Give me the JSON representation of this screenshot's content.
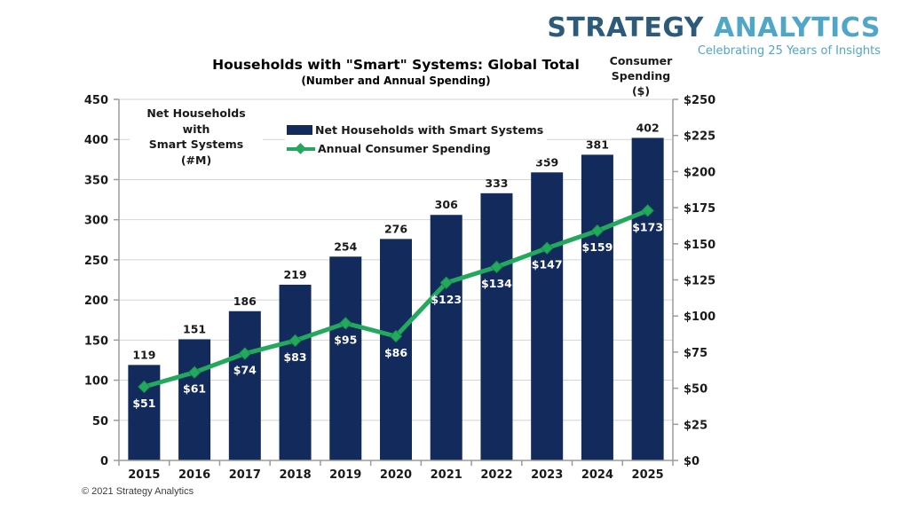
{
  "brand": {
    "name_primary": "STRATEGY",
    "name_secondary": "ANALYTICS",
    "tagline": "Celebrating 25 Years of Insights"
  },
  "footer": {
    "copyright": "© 2021 Strategy Analytics"
  },
  "colors": {
    "bar": "#132A5C",
    "line": "#23A95D",
    "line_marker_edge": "#168F4C",
    "grid": "#D4D4D4",
    "axis": "#9B9B9B",
    "bar_label": "#1A1A1A",
    "line_label": "#FFFFFF",
    "tick_label": "#1A1A1A",
    "logo_primary": "#2C5A7A",
    "logo_secondary": "#4FA6C9"
  },
  "chart_data": {
    "type": "bar+line",
    "title": "Households with \"Smart\" Systems: Global Total",
    "subtitle": "(Number and Annual Spending)",
    "categories": [
      "2015",
      "2016",
      "2017",
      "2018",
      "2019",
      "2020",
      "2021",
      "2022",
      "2023",
      "2024",
      "2025"
    ],
    "series": [
      {
        "name": "Net Households with Smart Systems",
        "chart": "bar",
        "axis": "left",
        "color": "#132A5C",
        "values": [
          119,
          151,
          186,
          219,
          254,
          276,
          306,
          333,
          359,
          381,
          402
        ],
        "labels": [
          "119",
          "151",
          "186",
          "219",
          "254",
          "276",
          "306",
          "333",
          "359",
          "381",
          "402"
        ]
      },
      {
        "name": "Annual Consumer Spending",
        "chart": "line",
        "axis": "right",
        "color": "#23A95D",
        "marker": "diamond",
        "values": [
          51,
          61,
          74,
          83,
          95,
          86,
          123,
          134,
          147,
          159,
          173
        ],
        "labels": [
          "$51",
          "$61",
          "$74",
          "$83",
          "$95",
          "$86",
          "$123",
          "$134",
          "$147",
          "$159",
          "$173"
        ]
      }
    ],
    "left_axis": {
      "title_lines": [
        "Net Households",
        "with",
        "Smart Systems",
        "(#M)"
      ],
      "min": 0,
      "max": 450,
      "step": 50,
      "tick_labels": [
        "0",
        "50",
        "100",
        "150",
        "200",
        "250",
        "300",
        "350",
        "400",
        "450"
      ]
    },
    "right_axis": {
      "title_lines": [
        "Consumer",
        "Spending",
        "($)"
      ],
      "min": 0,
      "max": 250,
      "step": 25,
      "tick_labels": [
        "$0",
        "$25",
        "$50",
        "$75",
        "$100",
        "$125",
        "$150",
        "$175",
        "$200",
        "$225",
        "$250"
      ]
    },
    "grid": "horizontal",
    "legend_position": "top-inside"
  }
}
